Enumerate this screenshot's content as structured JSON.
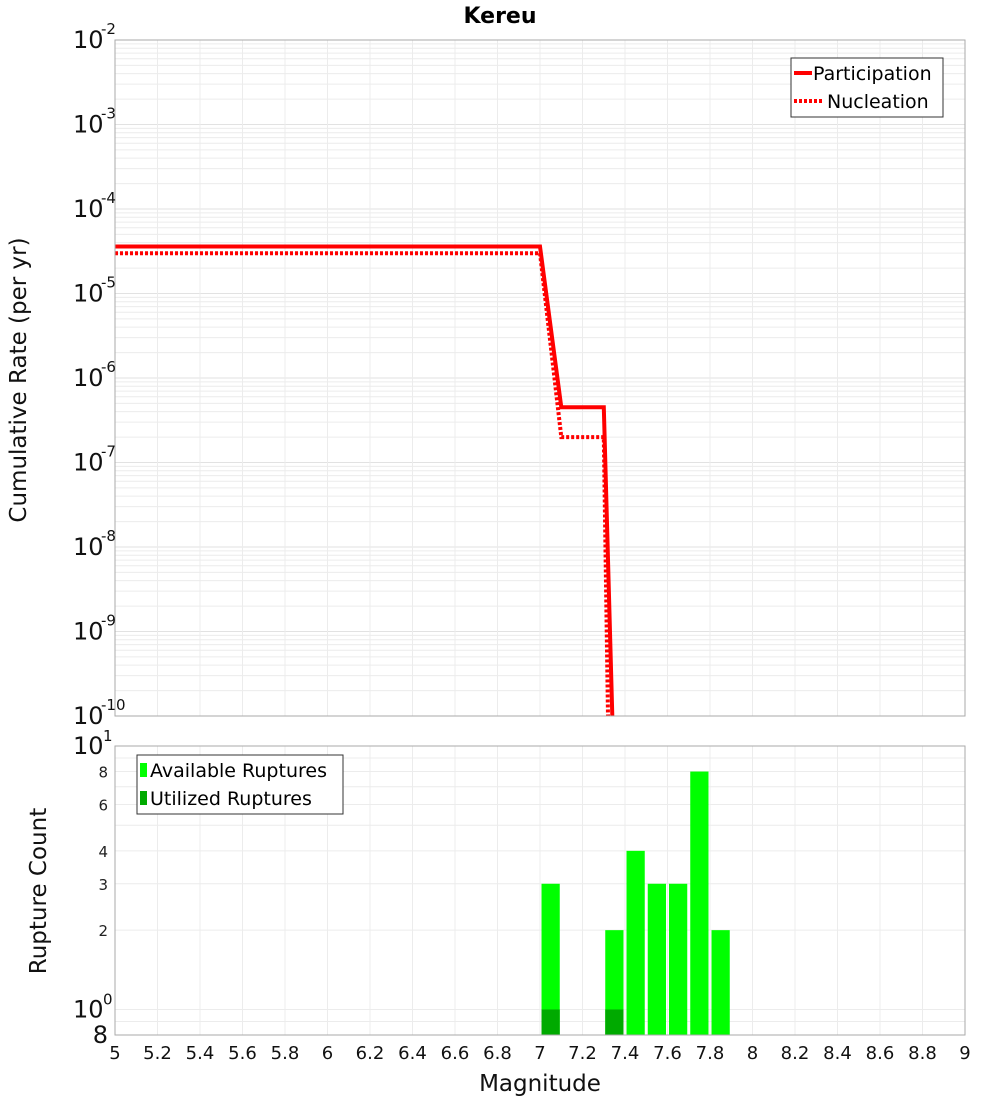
{
  "chart_data": [
    {
      "type": "line",
      "title": "Kereu",
      "xlabel": "Magnitude",
      "ylabel": "Cumulative Rate (per yr)",
      "yscale": "log",
      "xlim": [
        5,
        9
      ],
      "ylim": [
        1e-10,
        0.01
      ],
      "y_tick_labels": [
        {
          "base": "10",
          "exp": "-2"
        },
        {
          "base": "10",
          "exp": "-3"
        },
        {
          "base": "10",
          "exp": "-4"
        },
        {
          "base": "10",
          "exp": "-5"
        },
        {
          "base": "10",
          "exp": "-6"
        },
        {
          "base": "10",
          "exp": "-7"
        },
        {
          "base": "10",
          "exp": "-8"
        },
        {
          "base": "10",
          "exp": "-9"
        },
        {
          "base": "10",
          "exp": "-10"
        }
      ],
      "legend": {
        "position": "top-right",
        "entries": [
          "Participation",
          "Nucleation"
        ]
      },
      "series": [
        {
          "name": "Participation",
          "color": "#ff0000",
          "style": "solid",
          "points": [
            [
              5.0,
              3.6e-05
            ],
            [
              7.0,
              3.6e-05
            ],
            [
              7.1,
              4.5e-07
            ],
            [
              7.3,
              4.5e-07
            ],
            [
              7.34,
              1e-10
            ]
          ]
        },
        {
          "name": "Nucleation",
          "color": "#ff0000",
          "style": "dotted",
          "points": [
            [
              5.0,
              3e-05
            ],
            [
              7.0,
              3e-05
            ],
            [
              7.1,
              2e-07
            ],
            [
              7.3,
              2e-07
            ],
            [
              7.32,
              1e-10
            ]
          ]
        }
      ]
    },
    {
      "type": "bar",
      "xlabel": "Magnitude",
      "ylabel": "Rupture Count",
      "yscale": "log",
      "xlim": [
        5,
        9
      ],
      "ylim": [
        0.8,
        10
      ],
      "x_ticks": [
        "5",
        "5.2",
        "5.4",
        "5.6",
        "5.8",
        "6",
        "6.2",
        "6.4",
        "6.6",
        "6.8",
        "7",
        "7.2",
        "7.4",
        "7.6",
        "7.8",
        "8",
        "8.2",
        "8.4",
        "8.6",
        "8.8",
        "9"
      ],
      "y_ticks_minor": [
        "8",
        "6",
        "4",
        "3",
        "2"
      ],
      "y_decade_labels": [
        {
          "base": "10",
          "exp": "1"
        },
        {
          "base": "10",
          "exp": "0"
        }
      ],
      "y_bottom_label": "8",
      "legend": {
        "position": "top-left",
        "entries": [
          "Available Ruptures",
          "Utilized Ruptures"
        ]
      },
      "bin_width": 0.1,
      "series": [
        {
          "name": "Available Ruptures",
          "color": "#00ff00",
          "x": [
            7.05,
            7.35,
            7.45,
            7.55,
            7.65,
            7.75,
            7.85
          ],
          "values": [
            3,
            2,
            4,
            3,
            3,
            8,
            2
          ]
        },
        {
          "name": "Utilized Ruptures",
          "color": "#00aa00",
          "x": [
            7.05,
            7.35
          ],
          "values": [
            1,
            1
          ]
        }
      ]
    }
  ]
}
